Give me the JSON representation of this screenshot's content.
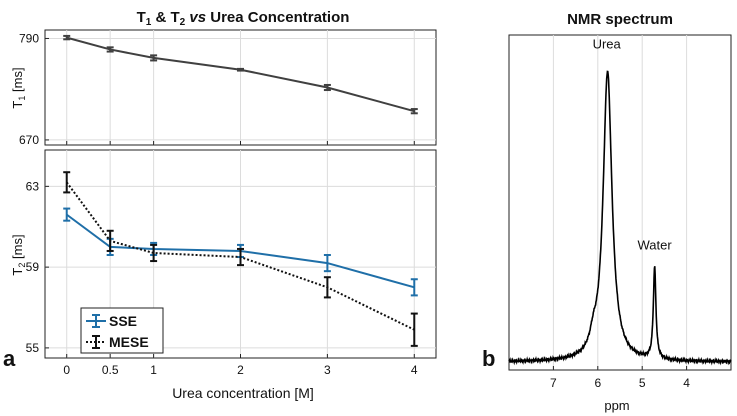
{
  "figure": {
    "panel_a_label": "a",
    "panel_b_label": "b"
  },
  "chart_data": [
    {
      "type": "line",
      "panel": "a-top",
      "title": "T1 & T2 vs Urea Concentration",
      "title_parts": {
        "t": "T",
        "sub1": "1",
        "amp": " & T",
        "sub2": "2",
        "vs": " vs ",
        "rest": "Urea Concentration"
      },
      "ylabel_main": "T",
      "ylabel_sub": "1",
      "ylabel_unit": " [ms]",
      "x": [
        0,
        0.5,
        1,
        2,
        3,
        4
      ],
      "xlim": [
        -0.25,
        4.25
      ],
      "ylim": [
        664,
        800
      ],
      "yticks": [
        670,
        790
      ],
      "grid": true,
      "series": [
        {
          "name": "T1",
          "color": "#404040",
          "values": [
            791,
            777,
            767,
            753,
            732,
            704
          ],
          "errors": [
            2,
            2.5,
            3,
            1,
            3,
            2.5
          ],
          "style": "solid"
        }
      ]
    },
    {
      "type": "line",
      "panel": "a-bottom",
      "ylabel_main": "T",
      "ylabel_sub": "2",
      "ylabel_unit": " [ms]",
      "xlabel": "Urea concentration [M]",
      "x": [
        0,
        0.5,
        1,
        2,
        3,
        4
      ],
      "xticks": [
        "0",
        "0.5",
        "1",
        "2",
        "3",
        "4"
      ],
      "xlim": [
        -0.25,
        4.25
      ],
      "ylim": [
        54.5,
        64.8
      ],
      "yticks": [
        55,
        59,
        63
      ],
      "grid": true,
      "legend_position": "bottom-left",
      "series": [
        {
          "name": "SSE",
          "color": "#1f6fa8",
          "values": [
            61.6,
            60.0,
            59.9,
            59.8,
            59.2,
            58.0
          ],
          "errors": [
            0.3,
            0.4,
            0.3,
            0.3,
            0.4,
            0.4
          ],
          "style": "solid"
        },
        {
          "name": "MESE",
          "color": "#111111",
          "values": [
            63.2,
            60.3,
            59.7,
            59.5,
            58.0,
            55.9
          ],
          "errors": [
            0.5,
            0.5,
            0.4,
            0.4,
            0.5,
            0.8
          ],
          "style": "dotted"
        }
      ]
    },
    {
      "type": "line",
      "panel": "b",
      "title": "NMR spectrum",
      "xlabel": "ppm",
      "xticks": [
        "7",
        "6",
        "5",
        "4"
      ],
      "xtick_values": [
        7,
        6,
        5,
        4
      ],
      "xlim": [
        8.0,
        3.0
      ],
      "x_reversed": true,
      "ylim": [
        0,
        1.0
      ],
      "grid": true,
      "annotations": [
        {
          "text": "Urea",
          "x": 5.8,
          "y": 0.96
        },
        {
          "text": "Water",
          "x": 4.72,
          "y": 0.36
        }
      ],
      "series": [
        {
          "name": "spectrum",
          "color": "#000000",
          "peaks": [
            {
              "center": 5.78,
              "height": 0.865,
              "width": 0.12
            },
            {
              "center": 4.72,
              "height": 0.275,
              "width": 0.035
            }
          ],
          "baseline": 0.024
        }
      ]
    }
  ]
}
